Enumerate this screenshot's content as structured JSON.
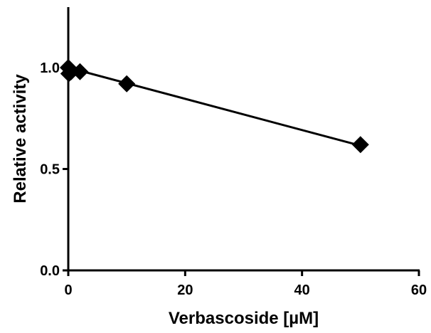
{
  "chart_data": {
    "type": "scatter",
    "title": "",
    "xlabel": "Verbascoside [µM]",
    "ylabel": "Relative activity",
    "xlim": [
      0,
      60
    ],
    "ylim": [
      0,
      1.3
    ],
    "xticks": [
      0,
      20,
      40,
      60
    ],
    "yticks": [
      0.0,
      0.5,
      1.0
    ],
    "ytick_labels": [
      "0.0",
      "0.5",
      "1.0"
    ],
    "grid": false,
    "legend": "none",
    "marker": "diamond",
    "color": "#000000",
    "series": [
      {
        "points": [
          {
            "x": 0,
            "y": 1.0
          },
          {
            "x": 0.1,
            "y": 0.97
          },
          {
            "x": 0.5,
            "y": 0.98
          },
          {
            "x": 2,
            "y": 0.98
          },
          {
            "x": 10,
            "y": 0.92
          },
          {
            "x": 50,
            "y": 0.62
          }
        ]
      }
    ],
    "fit_line": {
      "x": [
        0,
        50
      ],
      "y": [
        1.0,
        0.615
      ]
    }
  }
}
